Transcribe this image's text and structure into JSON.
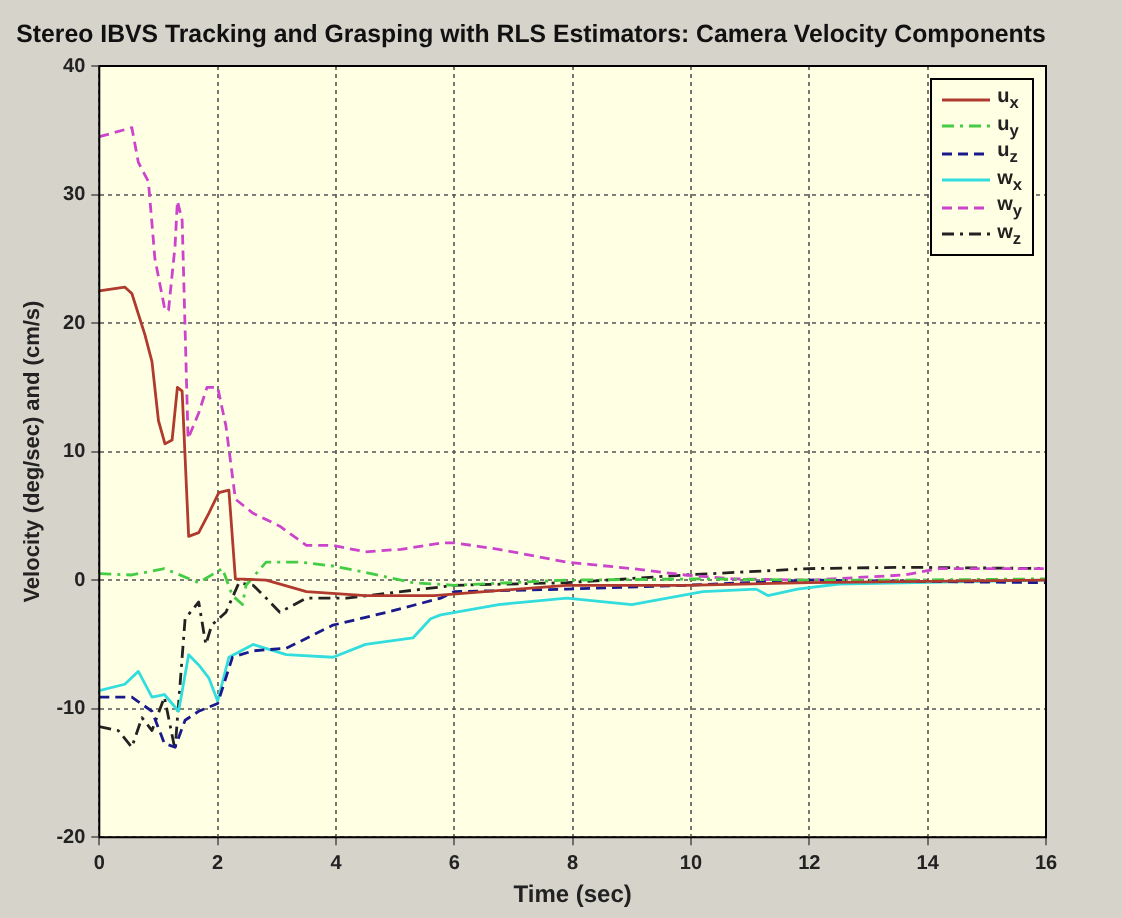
{
  "chart_data": {
    "type": "line",
    "title": "Stereo IBVS Tracking and Grasping with RLS Estimators: Camera Velocity Components",
    "xlabel": "Time (sec)",
    "ylabel": "Velocity (deg/sec) and (cm/s)",
    "xlim": [
      0,
      16
    ],
    "ylim": [
      -20,
      40
    ],
    "xticks": [
      0,
      2,
      4,
      6,
      8,
      10,
      12,
      14,
      16
    ],
    "yticks": [
      -20,
      -10,
      0,
      10,
      20,
      30,
      40
    ],
    "grid": true,
    "legend": "top right",
    "marker": "none",
    "series": [
      {
        "name": "u$_{x}$",
        "color": "#b03a2e",
        "line_style": "solid",
        "x": [
          0,
          0.43,
          0.55,
          0.77,
          0.89,
          1.0,
          1.11,
          1.23,
          1.32,
          1.4,
          1.51,
          1.68,
          1.85,
          2.02,
          2.19,
          2.3,
          2.82,
          3.5,
          4.5,
          5.66,
          7.9,
          9.9,
          12,
          16
        ],
        "values": [
          22.5,
          22.8,
          22.3,
          19.1,
          17,
          12.4,
          10.6,
          10.9,
          15,
          14.7,
          3.4,
          3.7,
          5.2,
          6.8,
          7,
          0.1,
          0,
          -0.9,
          -1.2,
          -1.2,
          -0.4,
          -0.4,
          -0.2,
          0
        ]
      },
      {
        "name": "u$_{y}$",
        "color": "#44cc44",
        "line_style": "dashdot",
        "x": [
          0,
          0.55,
          1.1,
          1.68,
          2.08,
          2.25,
          2.42,
          2.48,
          2.82,
          3.4,
          3.95,
          4.5,
          5.3,
          6,
          7.9,
          10.2,
          12,
          13.6,
          16
        ],
        "values": [
          0.5,
          0.4,
          0.9,
          -0.2,
          0.9,
          -1.2,
          -1.9,
          -0.4,
          1.4,
          1.4,
          1.1,
          0.6,
          -0.2,
          -0.4,
          0,
          0.1,
          0,
          0,
          0.1
        ]
      },
      {
        "name": "u$_{z}$",
        "color": "#1a1a8c",
        "line_style": "dashed",
        "x": [
          0,
          0.55,
          0.89,
          1.1,
          1.28,
          1.45,
          1.68,
          2,
          2.25,
          2.6,
          3.16,
          3.95,
          4.86,
          5.77,
          6,
          7.9,
          9.9,
          12,
          16
        ],
        "values": [
          -9.1,
          -9.1,
          -10.2,
          -12.7,
          -13,
          -10.9,
          -10.2,
          -9.6,
          -6,
          -5.5,
          -5.3,
          -3.5,
          -2.5,
          -1.4,
          -0.9,
          -0.7,
          -0.4,
          0,
          -0.2
        ]
      },
      {
        "name": "w$_{x}$",
        "color": "#33dddd",
        "line_style": "solid",
        "x": [
          0,
          0.43,
          0.66,
          0.89,
          1.1,
          1.34,
          1.51,
          1.68,
          1.85,
          2,
          2.19,
          2.6,
          3.16,
          3.95,
          4.5,
          5.3,
          5.6,
          5.77,
          6.75,
          7.9,
          9,
          10.2,
          11.1,
          11.3,
          11.8,
          12.5,
          16
        ],
        "values": [
          -8.6,
          -8.1,
          -7.1,
          -9.1,
          -8.9,
          -10.2,
          -5.8,
          -6.6,
          -7.6,
          -9.4,
          -6,
          -5,
          -5.8,
          -6,
          -5,
          -4.5,
          -3,
          -2.7,
          -1.9,
          -1.4,
          -1.9,
          -0.9,
          -0.7,
          -1.2,
          -0.7,
          -0.3,
          0
        ]
      },
      {
        "name": "w$_{y}$",
        "color": "#cc44cc",
        "line_style": "dashed",
        "x": [
          0,
          0.55,
          0.66,
          0.83,
          0.94,
          1.11,
          1.17,
          1.28,
          1.32,
          1.4,
          1.5,
          1.68,
          1.82,
          2.0,
          2.14,
          2.3,
          2.6,
          3.05,
          3.5,
          3.95,
          4.5,
          5.1,
          5.8,
          6,
          6.75,
          7.9,
          9,
          9.9,
          10.7,
          12,
          13.6,
          14.2,
          16
        ],
        "values": [
          34.5,
          35.2,
          32.5,
          31,
          25,
          21,
          21,
          26,
          29.5,
          28,
          11,
          13,
          15,
          15,
          12,
          6.3,
          5.2,
          4.2,
          2.7,
          2.7,
          2.2,
          2.4,
          2.9,
          2.9,
          2.4,
          1.4,
          0.9,
          0.4,
          0.1,
          0,
          0.4,
          0.9,
          0.9
        ]
      },
      {
        "name": "w$_{z}$",
        "color": "#222222",
        "line_style": "dashdot",
        "x": [
          0,
          0.32,
          0.55,
          0.72,
          0.89,
          1.1,
          1.28,
          1.45,
          1.68,
          1.8,
          1.9,
          2.14,
          2.36,
          2.6,
          2.82,
          3.05,
          3.5,
          4.18,
          5.1,
          6,
          7.9,
          9.9,
          12,
          13.6,
          16
        ],
        "values": [
          -11.4,
          -11.7,
          -13,
          -10.7,
          -11.7,
          -9.1,
          -13.2,
          -3,
          -1.7,
          -5,
          -3.5,
          -2.5,
          -0.2,
          -0.4,
          -1.4,
          -2.5,
          -1.4,
          -1.4,
          -0.9,
          -0.4,
          -0.2,
          0.4,
          0.9,
          1,
          0.9
        ]
      }
    ]
  }
}
